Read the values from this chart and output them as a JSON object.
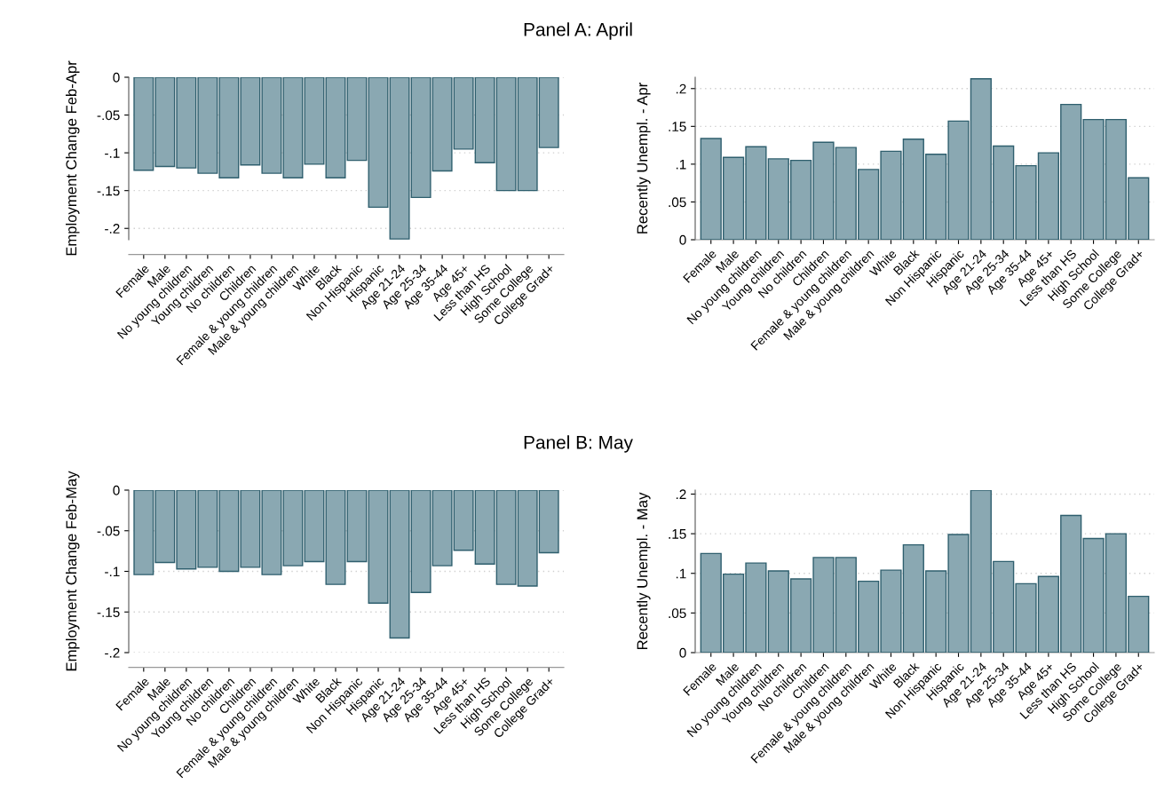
{
  "chart_data": [
    {
      "type": "bar",
      "title": "Panel A: April",
      "ylabel": "Employment Change Feb-Apr",
      "categories": [
        "Female",
        "Male",
        "No young children",
        "Young children",
        "No children",
        "Children",
        "Female & young children",
        "Male & young children",
        "White",
        "Black",
        "Non Hispanic",
        "Hispanic",
        "Age 21-24",
        "Age 25-34",
        "Age 35-44",
        "Age 45+",
        "Less than HS",
        "High School",
        "Some College",
        "College Grad+"
      ],
      "values": [
        -0.123,
        -0.118,
        -0.12,
        -0.127,
        -0.133,
        -0.116,
        -0.127,
        -0.133,
        -0.115,
        -0.133,
        -0.11,
        -0.172,
        -0.214,
        -0.159,
        -0.124,
        -0.095,
        -0.113,
        -0.15,
        -0.15,
        -0.093
      ],
      "color": "#8aa8b2",
      "ylim": [
        -0.215,
        0
      ],
      "yticks": [
        {
          "value": -0.2,
          "label": "-.2"
        },
        {
          "value": -0.15,
          "label": "-.15"
        },
        {
          "value": -0.1,
          "label": "-.1"
        },
        {
          "value": -0.05,
          "label": "-.05"
        },
        0
      ],
      "grid": "y"
    },
    {
      "type": "bar",
      "ylabel": "Recently Unempl. - Apr",
      "categories": [
        "Female",
        "Male",
        "No young children",
        "Young children",
        "No children",
        "Children",
        "Female & young children",
        "Male & young children",
        "White",
        "Black",
        "Non Hispanic",
        "Hispanic",
        "Age 21-24",
        "Age 25-34",
        "Age 35-44",
        "Age 45+",
        "Less than HS",
        "High School",
        "Some College",
        "College Grad+"
      ],
      "values": [
        0.134,
        0.109,
        0.123,
        0.107,
        0.105,
        0.129,
        0.122,
        0.093,
        0.117,
        0.133,
        0.113,
        0.157,
        0.213,
        0.124,
        0.098,
        0.115,
        0.179,
        0.159,
        0.159,
        0.082
      ],
      "color": "#8aa8b2",
      "ylim": [
        0,
        0.215
      ],
      "yticks": [
        0,
        {
          "value": 0.05,
          "label": ".05"
        },
        {
          "value": 0.1,
          "label": ".1"
        },
        {
          "value": 0.15,
          "label": ".15"
        },
        {
          "value": 0.2,
          "label": ".2"
        }
      ],
      "grid": "y"
    },
    {
      "type": "bar",
      "title": "Panel B: May",
      "ylabel": "Employment Change Feb-May",
      "categories": [
        "Female",
        "Male",
        "No young children",
        "Young children",
        "No children",
        "Children",
        "Female & young children",
        "Male & young children",
        "White",
        "Black",
        "Non Hispanic",
        "Hispanic",
        "Age 21-24",
        "Age 25-34",
        "Age 35-44",
        "Age 45+",
        "Less than HS",
        "High School",
        "Some College",
        "College Grad+"
      ],
      "values": [
        -0.104,
        -0.089,
        -0.097,
        -0.095,
        -0.1,
        -0.095,
        -0.104,
        -0.093,
        -0.088,
        -0.116,
        -0.088,
        -0.139,
        -0.182,
        -0.126,
        -0.093,
        -0.074,
        -0.091,
        -0.116,
        -0.118,
        -0.077
      ],
      "color": "#8aa8b2",
      "ylim": [
        -0.2,
        0
      ],
      "yticks": [
        {
          "value": -0.2,
          "label": "-.2"
        },
        {
          "value": -0.15,
          "label": "-.15"
        },
        {
          "value": -0.1,
          "label": "-.1"
        },
        {
          "value": -0.05,
          "label": "-.05"
        },
        0
      ],
      "grid": "y"
    },
    {
      "type": "bar",
      "ylabel": "Recently Unempl. - May",
      "categories": [
        "Female",
        "Male",
        "No young children",
        "Young children",
        "No children",
        "Children",
        "Female & young children",
        "Male & young children",
        "White",
        "Black",
        "Non Hispanic",
        "Hispanic",
        "Age 21-24",
        "Age 25-34",
        "Age 35-44",
        "Age 45+",
        "Less than HS",
        "High School",
        "Some College",
        "College Grad+"
      ],
      "values": [
        0.125,
        0.099,
        0.113,
        0.103,
        0.093,
        0.12,
        0.12,
        0.09,
        0.104,
        0.136,
        0.103,
        0.149,
        0.205,
        0.115,
        0.087,
        0.096,
        0.173,
        0.144,
        0.15,
        0.071
      ],
      "color": "#8aa8b2",
      "ylim": [
        0,
        0.205
      ],
      "yticks": [
        0,
        {
          "value": 0.05,
          "label": ".05"
        },
        {
          "value": 0.1,
          "label": ".1"
        },
        {
          "value": 0.15,
          "label": ".15"
        },
        {
          "value": 0.2,
          "label": ".2"
        }
      ],
      "grid": "y"
    }
  ]
}
